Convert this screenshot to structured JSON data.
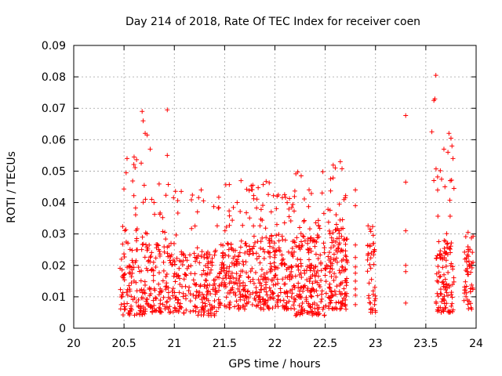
{
  "chart_data": {
    "type": "scatter",
    "title": "Day 214 of 2018, Rate Of TEC Index for receiver coen",
    "xlabel": "GPS time / hours",
    "ylabel": "ROTI / TECUs",
    "xlim": [
      20,
      24
    ],
    "ylim": [
      0,
      0.09
    ],
    "x_ticks": [
      "20",
      "20.5",
      "21",
      "21.5",
      "22",
      "22.5",
      "23",
      "23.5",
      "24"
    ],
    "y_ticks": [
      "0",
      "0.01",
      "0.02",
      "0.03",
      "0.04",
      "0.05",
      "0.06",
      "0.07",
      "0.08",
      "0.09"
    ],
    "grid": true,
    "marker": "+",
    "color": "#ff0000",
    "series": [
      {
        "name": "ROTI",
        "clusters": [
          {
            "x": [
              20.46,
              20.72
            ],
            "y_base": [
              0.004,
              0.028
            ],
            "peak": 0.055,
            "count": 130
          },
          {
            "x": [
              20.72,
              21.0
            ],
            "y_base": [
              0.005,
              0.028
            ],
            "peak": 0.047,
            "count": 130
          },
          {
            "x": [
              21.0,
              21.45
            ],
            "y_base": [
              0.004,
              0.025
            ],
            "peak": 0.044,
            "count": 200
          },
          {
            "x": [
              21.45,
              21.85
            ],
            "y_base": [
              0.006,
              0.028
            ],
            "peak": 0.047,
            "count": 210
          },
          {
            "x": [
              21.85,
              22.2
            ],
            "y_base": [
              0.006,
              0.03
            ],
            "peak": 0.047,
            "count": 210
          },
          {
            "x": [
              22.2,
              22.5
            ],
            "y_base": [
              0.004,
              0.03
            ],
            "peak": 0.05,
            "count": 190
          },
          {
            "x": [
              22.5,
              22.72
            ],
            "y_base": [
              0.006,
              0.032
            ],
            "peak": 0.052,
            "count": 150
          },
          {
            "x": [
              22.92,
              23.0
            ],
            "y_base": [
              0.005,
              0.027
            ],
            "peak": 0.033,
            "count": 45
          },
          {
            "x": [
              23.6,
              23.78
            ],
            "y_base": [
              0.005,
              0.028
            ],
            "peak": 0.06,
            "count": 110
          },
          {
            "x": [
              23.88,
              23.97
            ],
            "y_base": [
              0.006,
              0.03
            ],
            "peak": 0.033,
            "count": 50
          }
        ],
        "outliers": [
          {
            "x": 20.68,
            "y": 0.069
          },
          {
            "x": 20.69,
            "y": 0.066
          },
          {
            "x": 20.71,
            "y": 0.062
          },
          {
            "x": 20.73,
            "y": 0.0615
          },
          {
            "x": 20.93,
            "y": 0.0695
          },
          {
            "x": 20.93,
            "y": 0.055
          },
          {
            "x": 20.6,
            "y": 0.0545
          },
          {
            "x": 20.53,
            "y": 0.054
          },
          {
            "x": 20.76,
            "y": 0.057
          },
          {
            "x": 22.6,
            "y": 0.051
          },
          {
            "x": 22.65,
            "y": 0.053
          },
          {
            "x": 23.3,
            "y": 0.0677
          },
          {
            "x": 23.3,
            "y": 0.0465
          },
          {
            "x": 23.3,
            "y": 0.031
          },
          {
            "x": 23.3,
            "y": 0.008
          },
          {
            "x": 23.3,
            "y": 0.02
          },
          {
            "x": 23.3,
            "y": 0.018
          },
          {
            "x": 23.6,
            "y": 0.0805
          },
          {
            "x": 23.59,
            "y": 0.073
          },
          {
            "x": 23.58,
            "y": 0.0725
          },
          {
            "x": 23.56,
            "y": 0.0625
          },
          {
            "x": 23.73,
            "y": 0.062
          },
          {
            "x": 23.75,
            "y": 0.0605
          },
          {
            "x": 23.76,
            "y": 0.058
          },
          {
            "x": 23.72,
            "y": 0.056
          },
          {
            "x": 23.77,
            "y": 0.054
          },
          {
            "x": 23.68,
            "y": 0.057
          },
          {
            "x": 23.78,
            "y": 0.0445
          },
          {
            "x": 23.69,
            "y": 0.045
          },
          {
            "x": 23.58,
            "y": 0.047
          },
          {
            "x": 22.8,
            "y": 0.0265
          },
          {
            "x": 22.8,
            "y": 0.0225
          },
          {
            "x": 22.8,
            "y": 0.0195
          },
          {
            "x": 22.8,
            "y": 0.0175
          },
          {
            "x": 22.8,
            "y": 0.015
          },
          {
            "x": 22.8,
            "y": 0.0125
          },
          {
            "x": 22.8,
            "y": 0.0105
          },
          {
            "x": 22.8,
            "y": 0.0075
          },
          {
            "x": 22.8,
            "y": 0.044
          },
          {
            "x": 22.8,
            "y": 0.039
          }
        ]
      }
    ]
  }
}
